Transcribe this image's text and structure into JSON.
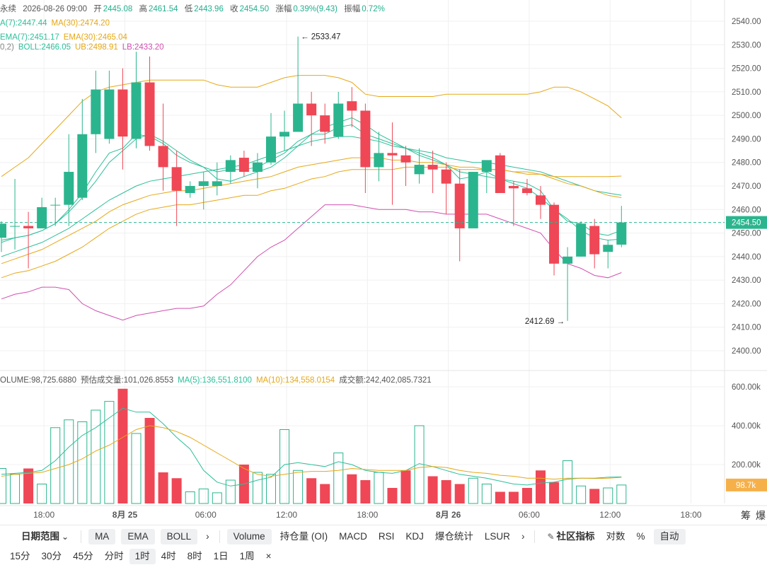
{
  "legend": {
    "line1": {
      "symbol": "永续",
      "datetime": "2026-08-26 09:00",
      "open_label": "开",
      "open": "2445.08",
      "high_label": "高",
      "high": "2461.54",
      "low_label": "低",
      "low": "2443.96",
      "close_label": "收",
      "close": "2454.50",
      "change_label": "涨幅",
      "change": "0.39%(9.43)",
      "amplitude_label": "振幅",
      "amplitude": "0.72%"
    },
    "line2": [
      {
        "text": "A(7):2447.44",
        "color": "#2dbf9a"
      },
      {
        "text": "MA(30):2474.20",
        "color": "#e6a817"
      }
    ],
    "line3": [
      {
        "text": "EMA(7):2451.17",
        "color": "#2dbf9a"
      },
      {
        "text": "EMA(30):2465.04",
        "color": "#e6a817"
      }
    ],
    "line4": [
      {
        "text": "0,2)",
        "color": "#888888"
      },
      {
        "text": "BOLL:2466.05",
        "color": "#2dbf9a"
      },
      {
        "text": "UB:2498.91",
        "color": "#e6a817"
      },
      {
        "text": "LB:2433.20",
        "color": "#d050b0"
      }
    ],
    "volume": [
      {
        "text": "OLUME:98,725.6880",
        "color": "#555555"
      },
      {
        "text": "预估成交量:101,026.8553",
        "color": "#555555"
      },
      {
        "text": "MA(5):136,551.8100",
        "color": "#2dbf9a"
      },
      {
        "text": "MA(10):134,558.0154",
        "color": "#e6a817"
      },
      {
        "text": "成交额:242,402,085.7321",
        "color": "#555555"
      }
    ]
  },
  "colors": {
    "up": "#2bb58e",
    "down": "#ef4756",
    "ma7": "#2dbf9a",
    "ma30": "#e6a817",
    "boll_mid": "#2dbf9a",
    "boll_ub": "#e6a817",
    "boll_lb": "#d050b0",
    "grid": "#f0f0f0",
    "axis_text": "#555555"
  },
  "chart_data": [
    {
      "type": "candlestick",
      "price_axis": {
        "min": 2400,
        "max": 2540,
        "ticks": [
          2400,
          2410,
          2420,
          2430,
          2440,
          2450,
          2460,
          2470,
          2480,
          2490,
          2500,
          2510,
          2520,
          2530,
          2540
        ],
        "tick_labels": [
          "2400.00",
          "2410.00",
          "2420.00",
          "2430.00",
          "2440.00",
          "2450.00",
          "2460.00",
          "2470.00",
          "2480.00",
          "2490.00",
          "2500.00",
          "2510.00",
          "2520.00",
          "2530.00",
          "2540.00"
        ]
      },
      "time_axis": {
        "labels": [
          "18:00",
          "8月 25",
          "06:00",
          "12:00",
          "18:00",
          "8月 26",
          "06:00",
          "12:00",
          "18:00"
        ],
        "label_index": [
          3,
          9,
          15,
          21,
          27,
          33,
          39,
          45,
          51
        ]
      },
      "candles": [
        {
          "o": 2448,
          "h": 2455,
          "l": 2442,
          "c": 2454
        },
        {
          "o": 2453,
          "h": 2473,
          "l": 2443,
          "c": 2453
        },
        {
          "o": 2453,
          "h": 2459,
          "l": 2435,
          "c": 2452
        },
        {
          "o": 2452,
          "h": 2465,
          "l": 2452,
          "c": 2461
        },
        {
          "o": 2462,
          "h": 2465,
          "l": 2453,
          "c": 2462
        },
        {
          "o": 2462,
          "h": 2492,
          "l": 2453,
          "c": 2476
        },
        {
          "o": 2465,
          "h": 2507,
          "l": 2464,
          "c": 2492
        },
        {
          "o": 2492,
          "h": 2519,
          "l": 2484,
          "c": 2511
        },
        {
          "o": 2490,
          "h": 2519,
          "l": 2488,
          "c": 2511
        },
        {
          "o": 2511,
          "h": 2520,
          "l": 2477,
          "c": 2491
        },
        {
          "o": 2490,
          "h": 2527,
          "l": 2486,
          "c": 2514
        },
        {
          "o": 2514,
          "h": 2525,
          "l": 2485,
          "c": 2487
        },
        {
          "o": 2487,
          "h": 2505,
          "l": 2468,
          "c": 2478
        },
        {
          "o": 2478,
          "h": 2485,
          "l": 2453,
          "c": 2468
        },
        {
          "o": 2467,
          "h": 2472,
          "l": 2465,
          "c": 2470
        },
        {
          "o": 2470,
          "h": 2476,
          "l": 2460,
          "c": 2472
        },
        {
          "o": 2470,
          "h": 2480,
          "l": 2466,
          "c": 2472
        },
        {
          "o": 2476,
          "h": 2483,
          "l": 2471,
          "c": 2481
        },
        {
          "o": 2482,
          "h": 2485,
          "l": 2474,
          "c": 2476
        },
        {
          "o": 2476,
          "h": 2484,
          "l": 2469,
          "c": 2480
        },
        {
          "o": 2480,
          "h": 2501,
          "l": 2479,
          "c": 2491
        },
        {
          "o": 2491,
          "h": 2502,
          "l": 2485,
          "c": 2493
        },
        {
          "o": 2493,
          "h": 2533.47,
          "l": 2493,
          "c": 2505
        },
        {
          "o": 2505,
          "h": 2510,
          "l": 2487,
          "c": 2500
        },
        {
          "o": 2500,
          "h": 2505,
          "l": 2488,
          "c": 2493
        },
        {
          "o": 2491,
          "h": 2510,
          "l": 2490,
          "c": 2505
        },
        {
          "o": 2506,
          "h": 2512,
          "l": 2495,
          "c": 2502
        },
        {
          "o": 2502,
          "h": 2505,
          "l": 2467,
          "c": 2478
        },
        {
          "o": 2478,
          "h": 2493,
          "l": 2472,
          "c": 2484
        },
        {
          "o": 2484,
          "h": 2497,
          "l": 2462,
          "c": 2483
        },
        {
          "o": 2483,
          "h": 2487,
          "l": 2470,
          "c": 2480
        },
        {
          "o": 2475,
          "h": 2486,
          "l": 2471,
          "c": 2479
        },
        {
          "o": 2479,
          "h": 2485,
          "l": 2467,
          "c": 2477
        },
        {
          "o": 2477,
          "h": 2480,
          "l": 2458,
          "c": 2471
        },
        {
          "o": 2471,
          "h": 2477,
          "l": 2438,
          "c": 2452
        },
        {
          "o": 2452,
          "h": 2476,
          "l": 2453,
          "c": 2476
        },
        {
          "o": 2476,
          "h": 2480,
          "l": 2467,
          "c": 2481
        },
        {
          "o": 2483,
          "h": 2484,
          "l": 2468,
          "c": 2467
        },
        {
          "o": 2470,
          "h": 2472,
          "l": 2453,
          "c": 2469
        },
        {
          "o": 2469,
          "h": 2473,
          "l": 2466,
          "c": 2467
        },
        {
          "o": 2466,
          "h": 2470,
          "l": 2456,
          "c": 2462
        },
        {
          "o": 2462,
          "h": 2463,
          "l": 2432,
          "c": 2437
        },
        {
          "o": 2437,
          "h": 2444,
          "l": 2412.69,
          "c": 2440
        },
        {
          "o": 2440,
          "h": 2455,
          "l": 2440,
          "c": 2454
        },
        {
          "o": 2453,
          "h": 2456,
          "l": 2435,
          "c": 2441
        },
        {
          "o": 2442,
          "h": 2447,
          "l": 2435,
          "c": 2445
        },
        {
          "o": 2445.08,
          "h": 2461.54,
          "l": 2443.96,
          "c": 2454.5
        }
      ],
      "ma7": [
        2446,
        2448,
        2449,
        2451,
        2454,
        2459,
        2465,
        2472,
        2480,
        2485,
        2490,
        2492,
        2489,
        2485,
        2481,
        2478,
        2473,
        2472,
        2474,
        2476,
        2478,
        2482,
        2487,
        2492,
        2495,
        2497,
        2499,
        2496,
        2492,
        2489,
        2486,
        2483,
        2481,
        2479,
        2476,
        2475,
        2474,
        2473,
        2471,
        2469,
        2465,
        2460,
        2456,
        2451,
        2448,
        2447,
        2447.44
      ],
      "ma30": [
        2437,
        2439,
        2441,
        2443,
        2446,
        2449,
        2452,
        2455,
        2459,
        2462,
        2464,
        2466,
        2467,
        2468,
        2468,
        2469,
        2470,
        2471,
        2472,
        2473,
        2474,
        2476,
        2478,
        2479,
        2480,
        2481,
        2482,
        2482,
        2482,
        2481,
        2481,
        2480,
        2480,
        2479,
        2478,
        2478,
        2477,
        2477,
        2476,
        2476,
        2475,
        2474,
        2474,
        2474,
        2474,
        2474,
        2474.2
      ],
      "ema7": [
        2447,
        2448,
        2449,
        2451,
        2454,
        2460,
        2467,
        2476,
        2484,
        2486,
        2492,
        2491,
        2488,
        2483,
        2480,
        2478,
        2476,
        2477,
        2477,
        2478,
        2481,
        2484,
        2489,
        2492,
        2492,
        2495,
        2496,
        2492,
        2490,
        2488,
        2486,
        2484,
        2482,
        2479,
        2473,
        2474,
        2476,
        2473,
        2472,
        2471,
        2468,
        2460,
        2455,
        2454,
        2450,
        2449,
        2451.17
      ],
      "ema30": [
        2431,
        2433,
        2434,
        2436,
        2438,
        2441,
        2444,
        2448,
        2452,
        2455,
        2458,
        2460,
        2461,
        2462,
        2462,
        2463,
        2464,
        2465,
        2466,
        2466,
        2468,
        2469,
        2471,
        2473,
        2474,
        2476,
        2477,
        2477,
        2477,
        2477,
        2478,
        2478,
        2478,
        2478,
        2477,
        2477,
        2477,
        2477,
        2476,
        2475,
        2475,
        2473,
        2471,
        2470,
        2468,
        2466,
        2465.04
      ],
      "boll_mid": [
        2440,
        2442,
        2444,
        2446,
        2449,
        2452,
        2456,
        2460,
        2464,
        2467,
        2470,
        2472,
        2473,
        2474,
        2475,
        2476,
        2477,
        2478,
        2479,
        2481,
        2483,
        2485,
        2487,
        2489,
        2490,
        2491,
        2491,
        2490,
        2489,
        2487,
        2486,
        2485,
        2484,
        2482,
        2481,
        2480,
        2480,
        2479,
        2478,
        2477,
        2476,
        2474,
        2472,
        2470,
        2468,
        2467,
        2466.05
      ],
      "boll_ub": [
        2474,
        2478,
        2482,
        2488,
        2494,
        2500,
        2506,
        2510,
        2512,
        2513,
        2514,
        2515,
        2515,
        2515,
        2515,
        2515,
        2513,
        2512,
        2512,
        2512,
        2514,
        2516,
        2517,
        2517,
        2517,
        2516,
        2514,
        2509,
        2508,
        2508,
        2508,
        2508,
        2508,
        2509,
        2509,
        2509,
        2509,
        2509,
        2509,
        2509,
        2510,
        2512,
        2512,
        2510,
        2507,
        2504,
        2498.91
      ],
      "boll_lb": [
        2422,
        2424,
        2425,
        2427,
        2427,
        2426,
        2420,
        2417,
        2415,
        2413,
        2415,
        2416,
        2417,
        2418,
        2418,
        2419,
        2424,
        2428,
        2434,
        2440,
        2444,
        2447,
        2452,
        2457,
        2462,
        2462,
        2462,
        2461,
        2460,
        2460,
        2460,
        2459,
        2459,
        2458,
        2458,
        2458,
        2458,
        2456,
        2454,
        2452,
        2450,
        2443,
        2437,
        2435,
        2432,
        2431,
        2433.2
      ]
    },
    {
      "type": "bar",
      "volume_axis": {
        "min": 0,
        "max": 600000,
        "tick_values": [
          200000,
          400000,
          600000
        ],
        "tick_labels": [
          "200.00k",
          "400.00k",
          "600.00k"
        ]
      },
      "current_volume_label": "98.7k",
      "volumes": [
        180000,
        150000,
        180000,
        100000,
        390000,
        430000,
        420000,
        480000,
        525000,
        590000,
        360000,
        440000,
        160000,
        130000,
        60000,
        75000,
        55000,
        120000,
        200000,
        160000,
        150000,
        380000,
        170000,
        130000,
        100000,
        260000,
        150000,
        120000,
        160000,
        80000,
        170000,
        400000,
        140000,
        120000,
        100000,
        130000,
        100000,
        60000,
        60000,
        80000,
        170000,
        110000,
        220000,
        90000,
        75000,
        80000,
        95000
      ],
      "vol_ma5": [
        150000,
        155000,
        160000,
        170000,
        220000,
        290000,
        350000,
        390000,
        440000,
        490000,
        470000,
        470000,
        410000,
        340000,
        280000,
        170000,
        110000,
        90000,
        100000,
        120000,
        135000,
        200000,
        210000,
        200000,
        190000,
        215000,
        200000,
        170000,
        160000,
        155000,
        170000,
        205000,
        190000,
        170000,
        150000,
        140000,
        130000,
        115000,
        100000,
        95000,
        105000,
        110000,
        125000,
        130000,
        130000,
        135000,
        136551
      ],
      "vol_ma10": [
        140000,
        150000,
        155000,
        160000,
        180000,
        200000,
        230000,
        270000,
        300000,
        340000,
        380000,
        400000,
        390000,
        370000,
        340000,
        300000,
        260000,
        220000,
        180000,
        150000,
        140000,
        150000,
        160000,
        165000,
        165000,
        170000,
        180000,
        175000,
        170000,
        170000,
        170000,
        185000,
        190000,
        185000,
        170000,
        160000,
        155000,
        145000,
        140000,
        130000,
        130000,
        125000,
        130000,
        130000,
        128000,
        130000,
        134558
      ]
    }
  ],
  "annotations": {
    "high_label": "2533.47",
    "low_label": "2412.69",
    "last_price": "2454.50",
    "high_arrow": "←",
    "low_arrow": "→"
  },
  "toolbar1": {
    "date_range": "日期范围",
    "chips1": [
      "MA",
      "EMA",
      "BOLL"
    ],
    "more1": "›",
    "indicators": [
      "Volume",
      "持仓量 (OI)",
      "MACD",
      "RSI",
      "KDJ",
      "爆仓统计",
      "LSUR"
    ],
    "more2": "›",
    "community": "社区指标",
    "log": "对数",
    "percent": "%",
    "auto": "自动"
  },
  "toolbar2": {
    "intervals": [
      "15分",
      "30分",
      "45分",
      "分时",
      "1时",
      "4时",
      "8时",
      "1日",
      "1周"
    ],
    "active": "1时",
    "close_icon": "×"
  },
  "corner_labels": {
    "chip": "筹",
    "burst": "爆"
  }
}
